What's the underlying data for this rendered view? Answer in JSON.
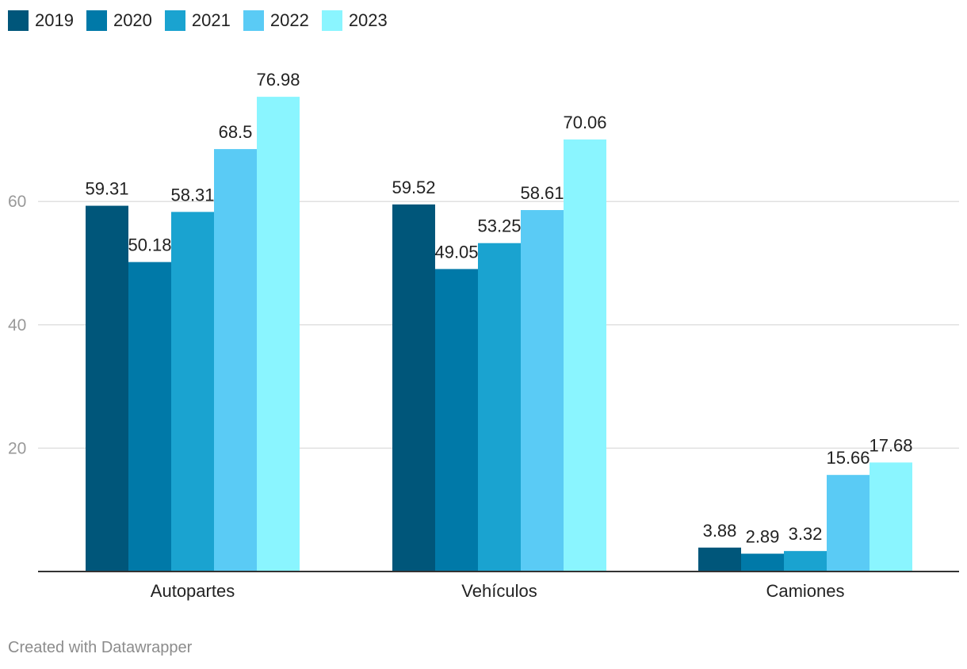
{
  "chart_data": {
    "type": "bar",
    "title": "",
    "xlabel": "",
    "ylabel": "",
    "ylim": [
      0,
      80
    ],
    "yticks": [
      20,
      40,
      60
    ],
    "grid": true,
    "legend_position": "top-left",
    "categories": [
      "Autopartes",
      "Vehículos",
      "Camiones"
    ],
    "series": [
      {
        "name": "2019",
        "color": "#00567a",
        "values": [
          59.31,
          59.52,
          3.88
        ],
        "labels": [
          "59.31",
          "59.52",
          "3.88"
        ]
      },
      {
        "name": "2020",
        "color": "#0079a8",
        "values": [
          50.18,
          49.05,
          2.89
        ],
        "labels": [
          "50.18",
          "49.05",
          "2.89"
        ]
      },
      {
        "name": "2021",
        "color": "#1aa3d0",
        "values": [
          58.31,
          53.25,
          3.32
        ],
        "labels": [
          "58.31",
          "53.25",
          "3.32"
        ]
      },
      {
        "name": "2022",
        "color": "#5acbf5",
        "values": [
          68.5,
          58.61,
          15.66
        ],
        "labels": [
          "68.5",
          "58.61",
          "15.66"
        ]
      },
      {
        "name": "2023",
        "color": "#8af5ff",
        "values": [
          76.98,
          70.06,
          17.68
        ],
        "labels": [
          "76.98",
          "70.06",
          "17.68"
        ]
      }
    ]
  },
  "footer": {
    "credit": "Created with Datawrapper"
  }
}
